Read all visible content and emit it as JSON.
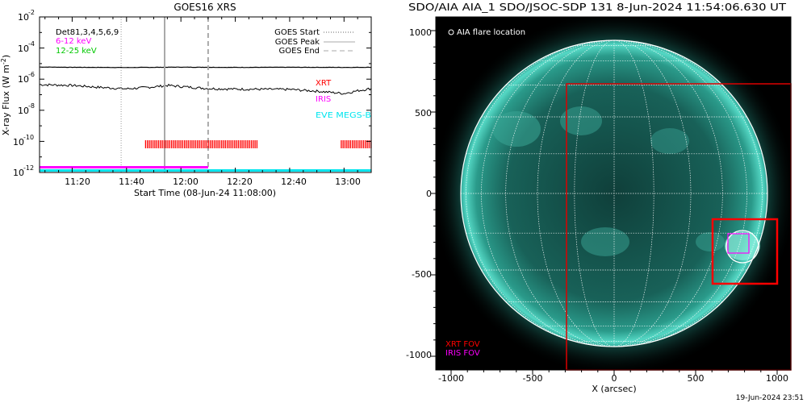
{
  "left_panel": {
    "title": "GOES16 XRS",
    "ylabel": "X-ray Flux (W m",
    "ylabel_sup": "-2",
    "ylabel_close": ")",
    "xlabel": "Start Time (08-Jun-24 11:08:00)",
    "detectors_label": "Det81,3,4,5,6,9",
    "energy_1": "6-12 keV",
    "energy_2": "12-25 keV",
    "legend_start": "GOES Start",
    "legend_peak": "GOES Peak",
    "legend_end": "GOES End",
    "inst_xrt": "XRT",
    "inst_iris": "IRIS",
    "inst_eve": "EVE MEGS-B",
    "ytick_base": "10",
    "ytick_exps": [
      "-2",
      "-4",
      "-6",
      "-8",
      "-10",
      "-12"
    ],
    "xticks": [
      "11:20",
      "11:40",
      "12:00",
      "12:20",
      "12:40",
      "13:00"
    ]
  },
  "right_panel": {
    "title": "SDO/AIA AIA_1 SDO/JSOC-SDP 131  8-Jun-2024 11:54:06.630 UT",
    "legend_flare": "AIA flare location",
    "xlabel": "X (arcsec)",
    "xticks": [
      "-1000",
      "-500",
      "0",
      "500",
      "1000"
    ],
    "yticks": [
      "1000",
      "500",
      "0",
      "-500",
      "-1000"
    ],
    "xrt_fov": "XRT FOV",
    "iris_fov": "IRIS FOV",
    "footer_timestamp": "19-Jun-2024 23:51"
  },
  "colors": {
    "xrt": "#ff0000",
    "iris": "#ff00ff",
    "eve": "#00e5ee",
    "energy_low": "#ff00ff",
    "energy_high": "#00c800",
    "sun_teal": "#23b3a3"
  },
  "chart_data": [
    {
      "type": "line",
      "title": "GOES16 XRS",
      "xlabel": "Start Time (08-Jun-24 11:08:00)",
      "ylabel": "X-ray Flux (W m^-2)",
      "yscale": "log",
      "xlim": [
        "11:08",
        "13:10"
      ],
      "ylim": [
        1e-12,
        0.01
      ],
      "series": [
        {
          "x": [
            "11:08",
            "11:20",
            "11:40",
            "12:00",
            "12:20",
            "12:40",
            "13:00",
            "13:10"
          ],
          "values": [
            6e-06,
            5.8e-06,
            5.6e-06,
            5.9e-06,
            5.7e-06,
            5.8e-06,
            5.7e-06,
            5.8e-06
          ]
        },
        {
          "x": [
            "11:08",
            "11:20",
            "11:30",
            "11:40",
            "11:50",
            "11:55",
            "12:00",
            "12:10",
            "12:20",
            "12:40",
            "12:50",
            "13:00",
            "13:05",
            "13:10"
          ],
          "values": [
            4.5e-07,
            4e-07,
            3e-07,
            2.4e-07,
            3.2e-07,
            4e-07,
            3.4e-07,
            2.5e-07,
            2.3e-07,
            2.2e-07,
            1.7e-07,
            1.2e-07,
            1.8e-07,
            2.5e-07
          ]
        }
      ],
      "markers": {
        "goes_start": "11:38",
        "goes_peak": "11:54",
        "goes_end": "12:10"
      },
      "coverage": {
        "XRT": [
          [
            "11:47",
            "12:28"
          ],
          [
            "12:59",
            "13:10"
          ]
        ],
        "IRIS": [
          [
            "11:08",
            "12:10"
          ]
        ],
        "EVE MEGS-B": [
          [
            "11:08",
            "13:10"
          ]
        ]
      }
    },
    {
      "type": "image",
      "title": "SDO/AIA AIA_1 SDO/JSOC-SDP 131  8-Jun-2024 11:54:06.630 UT",
      "xlabel": "X (arcsec)",
      "xlim": [
        -1100,
        1100
      ],
      "ylim": [
        -1100,
        1100
      ],
      "solar_radius_arcsec": 948,
      "grid": true,
      "flare_location": [
        780,
        -330
      ],
      "xrt_fov": {
        "x": [
          -300,
          1100
        ],
        "y": [
          -1100,
          680
        ]
      },
      "xrt_fov_zoom": {
        "x": [
          600,
          1000
        ],
        "y": [
          -560,
          -170
        ]
      },
      "iris_fov": {
        "x": [
          700,
          830
        ],
        "y": [
          -380,
          -280
        ]
      }
    }
  ]
}
